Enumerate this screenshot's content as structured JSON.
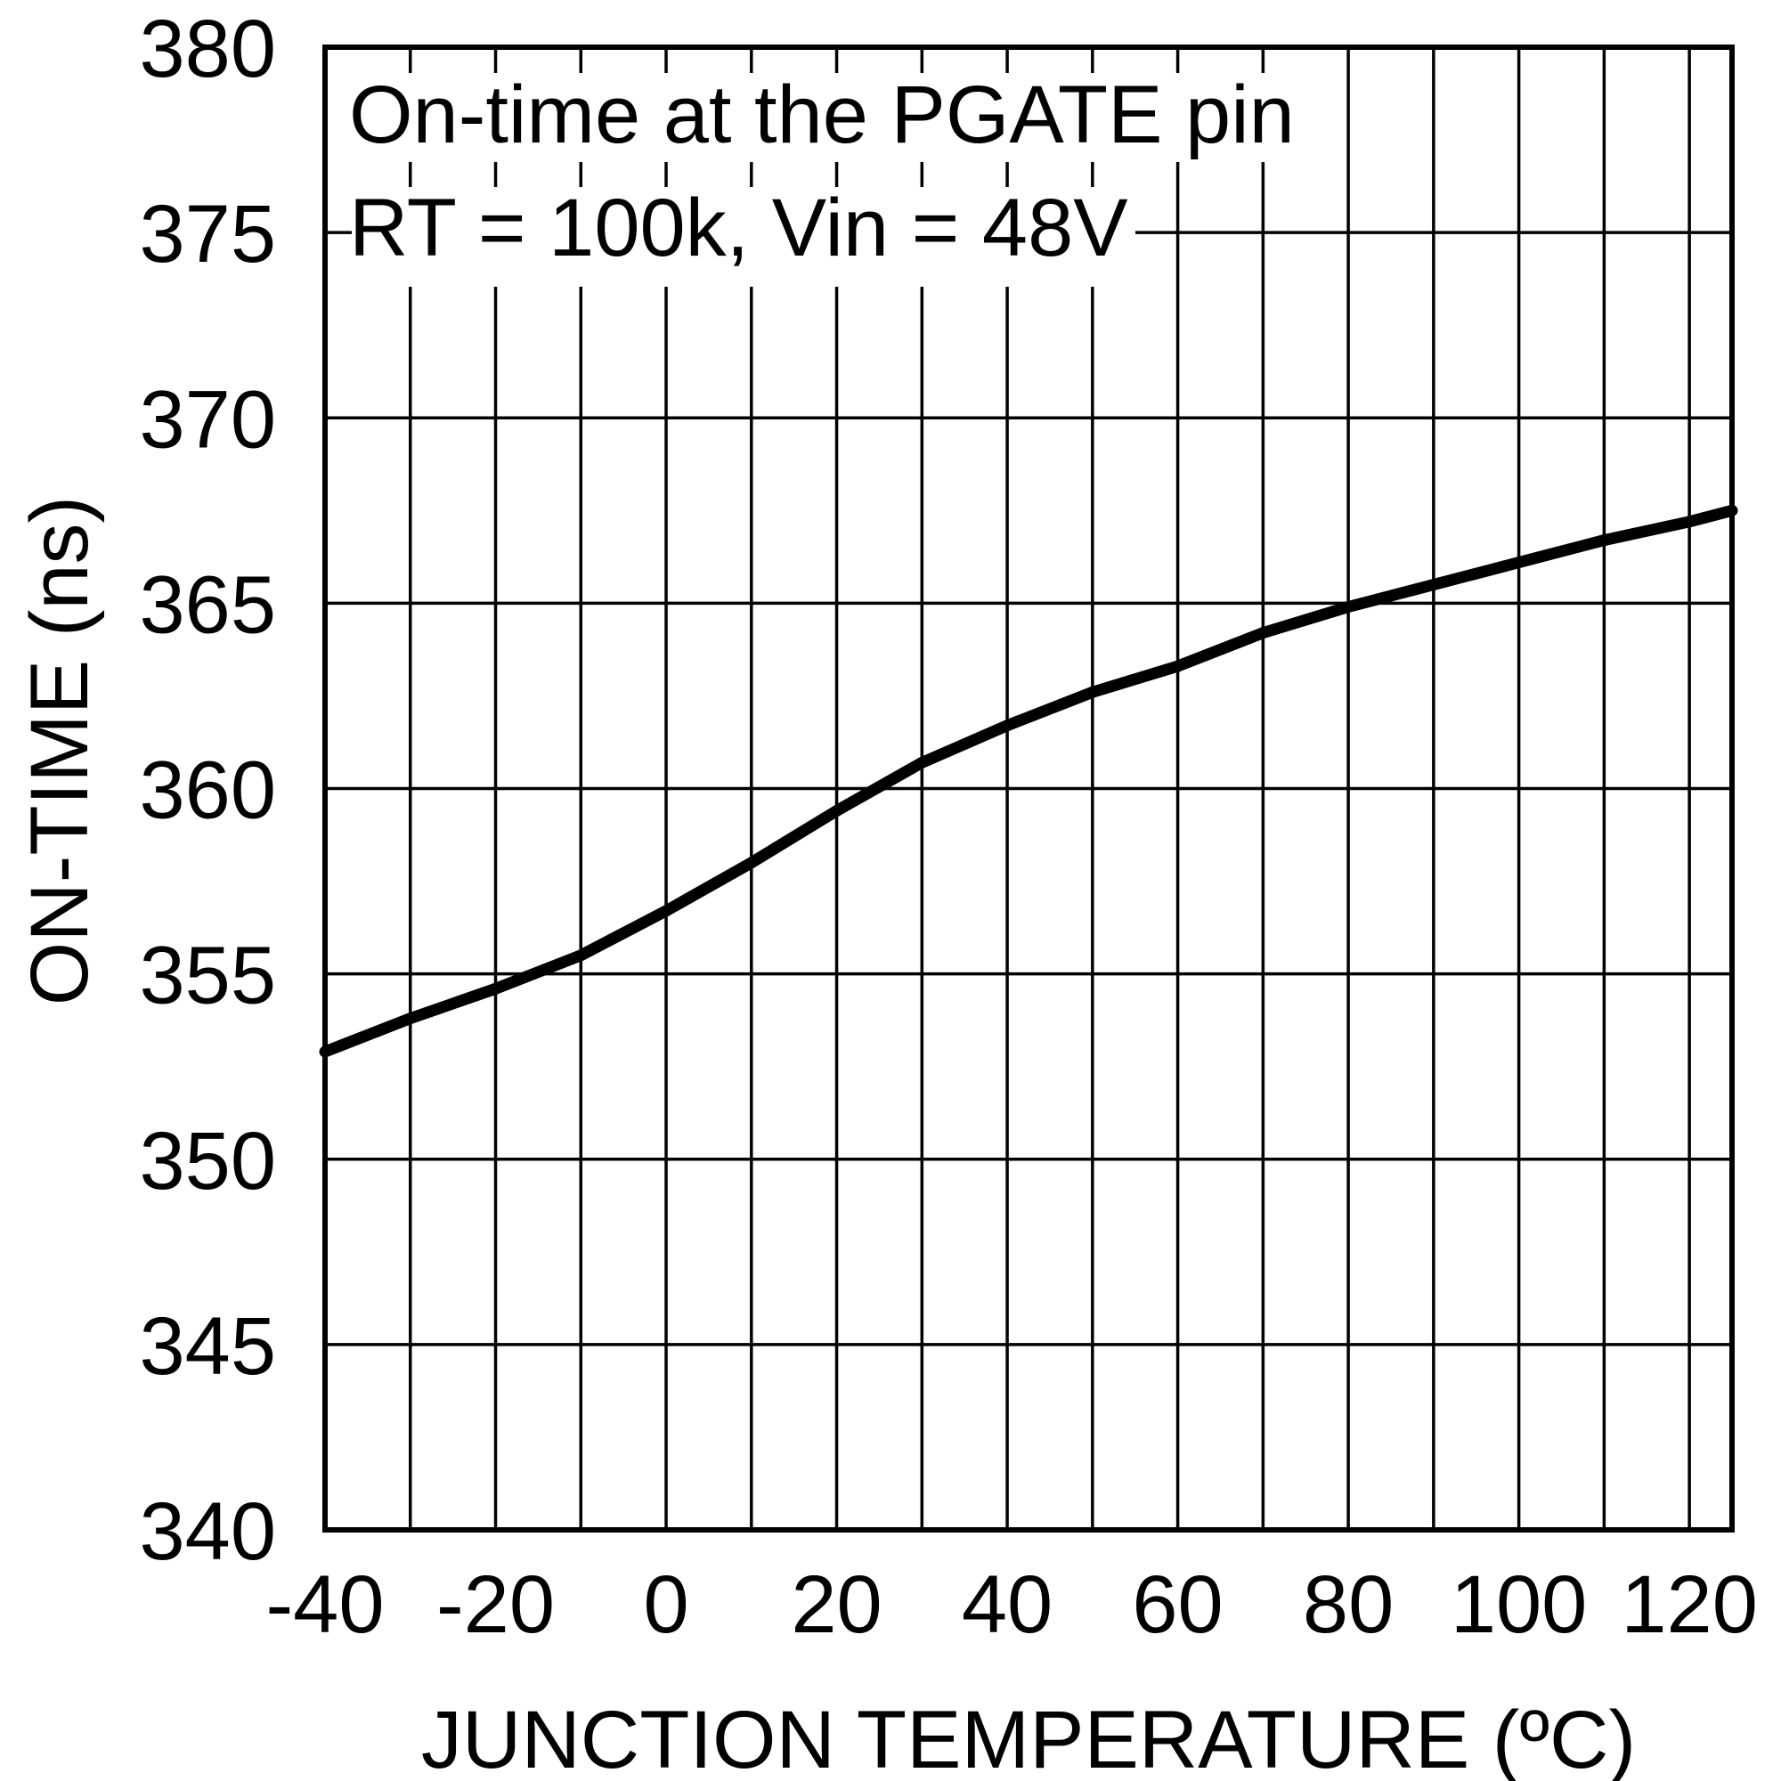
{
  "chart_data": {
    "type": "line",
    "title": "",
    "xlabel": "JUNCTION TEMPERATURE (ºC)",
    "ylabel": "ON-TIME (ns)",
    "xlim": [
      -40,
      125
    ],
    "ylim": [
      340,
      380
    ],
    "x_ticks": [
      -40,
      -20,
      0,
      20,
      40,
      60,
      80,
      100,
      120
    ],
    "y_ticks": [
      340,
      345,
      350,
      355,
      360,
      365,
      370,
      375,
      380
    ],
    "x_tick_labels": [
      "-40",
      "-20",
      "0",
      "20",
      "40",
      "60",
      "80",
      "100",
      "120"
    ],
    "y_tick_labels": [
      "340",
      "345",
      "350",
      "355",
      "360",
      "365",
      "370",
      "375",
      "380"
    ],
    "grid": true,
    "annotations": [
      "On-time at the PGATE pin",
      "RT = 100k, Vin = 48V"
    ],
    "series": [
      {
        "x": [
          -40,
          -30,
          -20,
          -10,
          0,
          10,
          20,
          30,
          40,
          50,
          60,
          70,
          80,
          90,
          100,
          110,
          120,
          125
        ],
        "y": [
          352.9,
          353.8,
          354.6,
          355.5,
          356.7,
          358.0,
          359.4,
          360.7,
          361.7,
          362.6,
          363.3,
          364.2,
          364.9,
          365.5,
          366.1,
          366.7,
          367.2,
          367.5
        ]
      }
    ],
    "line_color": "#000000"
  }
}
